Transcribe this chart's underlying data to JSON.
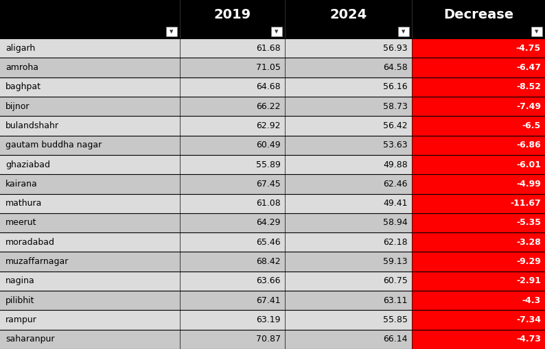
{
  "constituencies": [
    "aligarh",
    "amroha",
    "baghpat",
    "bijnor",
    "bulandshahr",
    "gautam buddha nagar",
    "ghaziabad",
    "kairana",
    "mathura",
    "meerut",
    "moradabad",
    "muzaffarnagar",
    "nagina",
    "pilibhit",
    "rampur",
    "saharanpur"
  ],
  "votes_2019": [
    61.68,
    71.05,
    64.68,
    66.22,
    62.92,
    60.49,
    55.89,
    67.45,
    61.08,
    64.29,
    65.46,
    68.42,
    63.66,
    67.41,
    63.19,
    70.87
  ],
  "votes_2024": [
    56.93,
    64.58,
    56.16,
    58.73,
    56.42,
    53.63,
    49.88,
    62.46,
    49.41,
    58.94,
    62.18,
    59.13,
    60.75,
    63.11,
    55.85,
    66.14
  ],
  "decrease": [
    -4.75,
    -6.47,
    -8.52,
    -7.49,
    -6.5,
    -6.86,
    -6.01,
    -4.99,
    -11.67,
    -5.35,
    -3.28,
    -9.29,
    -2.91,
    -4.3,
    -7.34,
    -4.73
  ],
  "decrease_str": [
    "-4.75",
    "-6.47",
    "-8.52",
    "-7.49",
    "-6.5",
    "-6.86",
    "-6.01",
    "-4.99",
    "-11.67",
    "-5.35",
    "-3.28",
    "-9.29",
    "-2.91",
    "-4.3",
    "-7.34",
    "-4.73"
  ],
  "header_bg": "#000000",
  "header_text_color": "#ffffff",
  "header_labels": [
    "2019",
    "2024",
    "Decrease"
  ],
  "row_bg_light": "#dcdcdc",
  "row_bg_dark": "#c8c8c8",
  "decrease_bg": "#ff0000",
  "decrease_text_color": "#ffffff",
  "data_text_color": "#000000",
  "constituency_text_color": "#000000",
  "border_color": "#000000",
  "fig_width": 7.94,
  "fig_height": 5.09,
  "dpi": 100
}
